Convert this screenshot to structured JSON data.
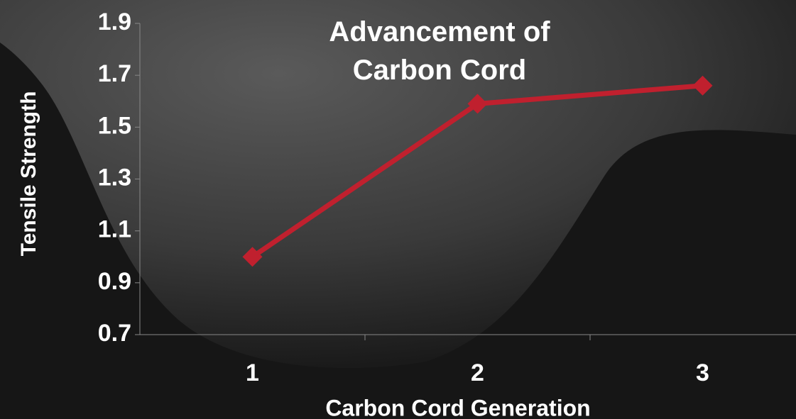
{
  "chart_data": {
    "type": "line",
    "title": "Advancement of Carbon Cord",
    "x_label": "Carbon Cord Generation",
    "y_label": "Tensile Strength",
    "categories": [
      "1",
      "2",
      "3"
    ],
    "series": [
      {
        "name": "Tensile Strength",
        "color": "#c0202e",
        "values": [
          1.0,
          1.59,
          1.66
        ]
      }
    ],
    "ylim": [
      0.7,
      1.9
    ],
    "yticks": [
      0.7,
      0.9,
      1.1,
      1.3,
      1.5,
      1.7,
      1.9
    ],
    "grid": false
  }
}
